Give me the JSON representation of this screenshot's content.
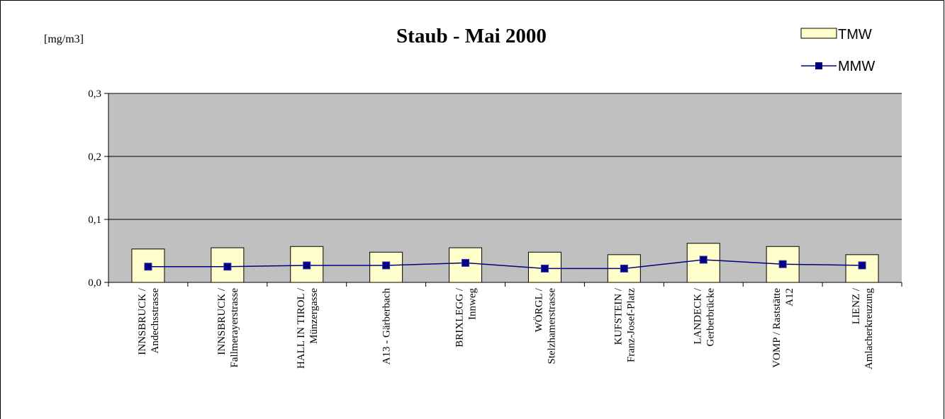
{
  "chart_data": {
    "type": "bar_line",
    "title": "Staub - Mai 2000",
    "y_label": "[mg/m3]",
    "categories": [
      [
        "INNSBRUCK /",
        "Andechsstrasse"
      ],
      [
        "INNSBRUCK /",
        "Fallmerayerstrasse"
      ],
      [
        "HALL IN TIROL /",
        "Münzergasse"
      ],
      [
        "A13 - Gärberbach"
      ],
      [
        "BRIXLEGG /",
        "Innweg"
      ],
      [
        "WÖRGL /",
        "Stelzhamerstrasse"
      ],
      [
        "KUFSTEIN /",
        "Franz-Josef-Platz"
      ],
      [
        "LANDECK /",
        "Gerberbrücke"
      ],
      [
        "VOMP / Raststätte",
        "A12"
      ],
      [
        "LIENZ /",
        "Amlacherkreuzung"
      ]
    ],
    "series": [
      {
        "name": "TMW",
        "type": "bar",
        "color": "#ffffcc",
        "values": [
          0.053,
          0.055,
          0.057,
          0.048,
          0.055,
          0.048,
          0.044,
          0.062,
          0.057,
          0.044
        ]
      },
      {
        "name": "MMW",
        "type": "line",
        "color": "#000080",
        "values": [
          0.025,
          0.025,
          0.027,
          0.027,
          0.031,
          0.022,
          0.022,
          0.036,
          0.029,
          0.027
        ]
      }
    ],
    "ylim": [
      0,
      0.3
    ],
    "yticks": [
      {
        "value": 0,
        "label": "0,0"
      },
      {
        "value": 0.1,
        "label": "0,1"
      },
      {
        "value": 0.2,
        "label": "0,2"
      },
      {
        "value": 0.3,
        "label": "0,3"
      }
    ],
    "grid": true,
    "legend": "top-right",
    "plot_background": "#c0c0c0"
  }
}
